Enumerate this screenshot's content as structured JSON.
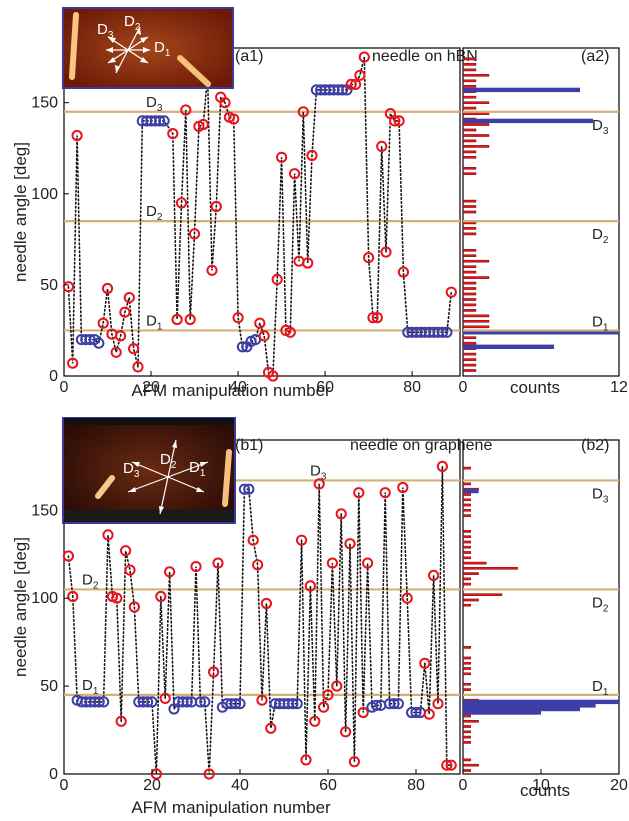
{
  "chart_data": [
    {
      "type": "scatter",
      "panel_label": "(a1)",
      "title": "needle on hBN",
      "xlabel": "AFM manipulation number",
      "ylabel": "needle angle [deg]",
      "xlim": [
        0,
        91
      ],
      "ylim": [
        0,
        180
      ],
      "xticks": [
        0,
        20,
        40,
        60,
        80
      ],
      "yticks": [
        0,
        50,
        100,
        150
      ],
      "reference_lines": [
        {
          "label_main": "D",
          "label_sub": "1",
          "value": 25
        },
        {
          "label_main": "D",
          "label_sub": "2",
          "value": 85
        },
        {
          "label_main": "D",
          "label_sub": "3",
          "value": 145
        }
      ],
      "inset_labels": [
        {
          "main": "D",
          "sub": "3"
        },
        {
          "main": "D",
          "sub": "2"
        },
        {
          "main": "D",
          "sub": "1"
        }
      ],
      "points": [
        [
          1,
          49,
          "red"
        ],
        [
          2,
          7,
          "red"
        ],
        [
          3,
          132,
          "red"
        ],
        [
          4,
          20,
          "blue"
        ],
        [
          5,
          20,
          "blue"
        ],
        [
          6,
          20,
          "blue"
        ],
        [
          7,
          20,
          "blue"
        ],
        [
          8,
          18,
          "blue"
        ],
        [
          9,
          29,
          "red"
        ],
        [
          10,
          48,
          "red"
        ],
        [
          11,
          23,
          "red"
        ],
        [
          12,
          13,
          "red"
        ],
        [
          13,
          22,
          "red"
        ],
        [
          14,
          35,
          "red"
        ],
        [
          15,
          43,
          "red"
        ],
        [
          16,
          15,
          "red"
        ],
        [
          17,
          5,
          "red"
        ],
        [
          18,
          140,
          "blue"
        ],
        [
          19,
          140,
          "blue"
        ],
        [
          20,
          140,
          "blue"
        ],
        [
          21,
          140,
          "blue"
        ],
        [
          22,
          140,
          "blue"
        ],
        [
          23,
          140,
          "blue"
        ],
        [
          25,
          133,
          "red"
        ],
        [
          26,
          31,
          "red"
        ],
        [
          27,
          95,
          "red"
        ],
        [
          28,
          146,
          "red"
        ],
        [
          29,
          31,
          "red"
        ],
        [
          30,
          78,
          "red"
        ],
        [
          31,
          137,
          "red"
        ],
        [
          32,
          138,
          "red"
        ],
        [
          33,
          165,
          "red"
        ],
        [
          34,
          58,
          "red"
        ],
        [
          35,
          93,
          "red"
        ],
        [
          36,
          153,
          "red"
        ],
        [
          37,
          150,
          "red"
        ],
        [
          38,
          142,
          "red"
        ],
        [
          39,
          141,
          "red"
        ],
        [
          40,
          32,
          "red"
        ],
        [
          41,
          16,
          "blue"
        ],
        [
          42,
          16,
          "blue"
        ],
        [
          43,
          19,
          "blue"
        ],
        [
          44,
          20,
          "blue"
        ],
        [
          45,
          29,
          "red"
        ],
        [
          46,
          22,
          "red"
        ],
        [
          47,
          2,
          "red"
        ],
        [
          48,
          0,
          "red"
        ],
        [
          49,
          53,
          "red"
        ],
        [
          50,
          120,
          "red"
        ],
        [
          51,
          25,
          "red"
        ],
        [
          52,
          24,
          "red"
        ],
        [
          53,
          111,
          "red"
        ],
        [
          54,
          63,
          "red"
        ],
        [
          55,
          145,
          "red"
        ],
        [
          56,
          62,
          "red"
        ],
        [
          57,
          121,
          "red"
        ],
        [
          58,
          157,
          "blue"
        ],
        [
          59,
          157,
          "blue"
        ],
        [
          60,
          157,
          "blue"
        ],
        [
          61,
          157,
          "blue"
        ],
        [
          62,
          157,
          "blue"
        ],
        [
          63,
          157,
          "blue"
        ],
        [
          64,
          157,
          "blue"
        ],
        [
          65,
          157,
          "blue"
        ],
        [
          66,
          160,
          "red"
        ],
        [
          67,
          160,
          "red"
        ],
        [
          68,
          165,
          "red"
        ],
        [
          69,
          175,
          "red"
        ],
        [
          70,
          65,
          "red"
        ],
        [
          71,
          32,
          "red"
        ],
        [
          72,
          32,
          "red"
        ],
        [
          73,
          126,
          "red"
        ],
        [
          74,
          68,
          "red"
        ],
        [
          75,
          144,
          "red"
        ],
        [
          76,
          140,
          "red"
        ],
        [
          77,
          140,
          "red"
        ],
        [
          78,
          57,
          "red"
        ],
        [
          79,
          24,
          "blue"
        ],
        [
          80,
          24,
          "blue"
        ],
        [
          81,
          24,
          "blue"
        ],
        [
          82,
          24,
          "blue"
        ],
        [
          83,
          24,
          "blue"
        ],
        [
          84,
          24,
          "blue"
        ],
        [
          85,
          24,
          "blue"
        ],
        [
          86,
          24,
          "blue"
        ],
        [
          87,
          24,
          "blue"
        ],
        [
          88,
          24,
          "blue"
        ],
        [
          89,
          46,
          "red"
        ]
      ]
    },
    {
      "type": "bar",
      "orientation": "horizontal",
      "panel_label": "(a2)",
      "xlabel": "counts",
      "xlim": [
        0,
        12
      ],
      "xticks": [
        0,
        12
      ],
      "reference_lines": [
        {
          "label_main": "D",
          "label_sub": "1",
          "value": 25
        },
        {
          "label_main": "D",
          "label_sub": "2",
          "value": 85
        },
        {
          "label_main": "D",
          "label_sub": "3",
          "value": 145
        }
      ],
      "red_bars": [
        [
          3,
          1
        ],
        [
          6,
          1
        ],
        [
          9,
          1
        ],
        [
          12,
          1
        ],
        [
          15,
          1
        ],
        [
          18,
          1
        ],
        [
          21,
          1
        ],
        [
          24,
          2
        ],
        [
          27,
          2
        ],
        [
          30,
          2
        ],
        [
          33,
          2
        ],
        [
          36,
          1
        ],
        [
          39,
          1
        ],
        [
          42,
          1
        ],
        [
          45,
          1
        ],
        [
          48,
          1
        ],
        [
          51,
          1
        ],
        [
          54,
          2
        ],
        [
          57,
          1
        ],
        [
          60,
          1
        ],
        [
          63,
          2
        ],
        [
          66,
          1
        ],
        [
          69,
          1
        ],
        [
          78,
          1
        ],
        [
          81,
          1
        ],
        [
          84,
          1
        ],
        [
          90,
          1
        ],
        [
          93,
          1
        ],
        [
          96,
          1
        ],
        [
          111,
          1
        ],
        [
          114,
          1
        ],
        [
          120,
          1
        ],
        [
          123,
          1
        ],
        [
          126,
          2
        ],
        [
          129,
          1
        ],
        [
          132,
          2
        ],
        [
          135,
          1
        ],
        [
          138,
          2
        ],
        [
          141,
          1
        ],
        [
          144,
          2
        ],
        [
          147,
          1
        ],
        [
          150,
          2
        ],
        [
          153,
          1
        ],
        [
          156,
          1
        ],
        [
          159,
          1
        ],
        [
          162,
          1
        ],
        [
          165,
          2
        ],
        [
          168,
          1
        ],
        [
          171,
          1
        ],
        [
          174,
          1
        ]
      ],
      "blue_bars": [
        [
          16,
          7
        ],
        [
          24,
          12
        ],
        [
          140,
          10
        ],
        [
          157,
          9
        ]
      ]
    },
    {
      "type": "scatter",
      "panel_label": "(b1)",
      "title": "needle on graphene",
      "xlabel": "AFM manipulation number",
      "ylabel": "needle angle [deg]",
      "xlim": [
        0,
        90
      ],
      "ylim": [
        0,
        190
      ],
      "xticks": [
        0,
        20,
        40,
        60,
        80
      ],
      "yticks": [
        0,
        50,
        100,
        150
      ],
      "reference_lines": [
        {
          "label_main": "D",
          "label_sub": "1",
          "value": 45
        },
        {
          "label_main": "D",
          "label_sub": "2",
          "value": 105
        },
        {
          "label_main": "D",
          "label_sub": "3",
          "value": 167
        }
      ],
      "inset_labels": [
        {
          "main": "D",
          "sub": "3"
        },
        {
          "main": "D",
          "sub": "2"
        },
        {
          "main": "D",
          "sub": "1"
        }
      ],
      "points": [
        [
          1,
          124,
          "red"
        ],
        [
          2,
          101,
          "red"
        ],
        [
          3,
          42,
          "blue"
        ],
        [
          4,
          41,
          "blue"
        ],
        [
          5,
          41,
          "blue"
        ],
        [
          6,
          41,
          "blue"
        ],
        [
          7,
          41,
          "blue"
        ],
        [
          8,
          41,
          "blue"
        ],
        [
          9,
          41,
          "blue"
        ],
        [
          10,
          136,
          "red"
        ],
        [
          11,
          101,
          "red"
        ],
        [
          12,
          100,
          "red"
        ],
        [
          13,
          30,
          "red"
        ],
        [
          14,
          127,
          "red"
        ],
        [
          15,
          116,
          "red"
        ],
        [
          16,
          95,
          "red"
        ],
        [
          17,
          41,
          "blue"
        ],
        [
          18,
          41,
          "blue"
        ],
        [
          19,
          41,
          "blue"
        ],
        [
          20,
          41,
          "blue"
        ],
        [
          21,
          0,
          "red"
        ],
        [
          22,
          101,
          "red"
        ],
        [
          23,
          43,
          "red"
        ],
        [
          24,
          115,
          "red"
        ],
        [
          25,
          37,
          "blue"
        ],
        [
          26,
          41,
          "blue"
        ],
        [
          27,
          41,
          "blue"
        ],
        [
          28,
          41,
          "blue"
        ],
        [
          29,
          41,
          "blue"
        ],
        [
          30,
          118,
          "red"
        ],
        [
          31,
          41,
          "blue"
        ],
        [
          32,
          41,
          "blue"
        ],
        [
          33,
          0,
          "red"
        ],
        [
          34,
          58,
          "red"
        ],
        [
          35,
          120,
          "red"
        ],
        [
          36,
          38,
          "blue"
        ],
        [
          37,
          40,
          "blue"
        ],
        [
          38,
          40,
          "blue"
        ],
        [
          39,
          40,
          "blue"
        ],
        [
          40,
          40,
          "blue"
        ],
        [
          41,
          162,
          "blue"
        ],
        [
          42,
          162,
          "blue"
        ],
        [
          43,
          133,
          "red"
        ],
        [
          44,
          119,
          "red"
        ],
        [
          45,
          42,
          "red"
        ],
        [
          46,
          97,
          "red"
        ],
        [
          47,
          26,
          "red"
        ],
        [
          48,
          40,
          "blue"
        ],
        [
          49,
          40,
          "blue"
        ],
        [
          50,
          40,
          "blue"
        ],
        [
          51,
          40,
          "blue"
        ],
        [
          52,
          40,
          "blue"
        ],
        [
          53,
          40,
          "blue"
        ],
        [
          54,
          133,
          "red"
        ],
        [
          55,
          8,
          "red"
        ],
        [
          56,
          107,
          "red"
        ],
        [
          57,
          30,
          "red"
        ],
        [
          58,
          165,
          "red"
        ],
        [
          59,
          38,
          "red"
        ],
        [
          60,
          45,
          "red"
        ],
        [
          61,
          120,
          "red"
        ],
        [
          62,
          50,
          "red"
        ],
        [
          63,
          148,
          "red"
        ],
        [
          64,
          24,
          "red"
        ],
        [
          65,
          131,
          "red"
        ],
        [
          66,
          7,
          "red"
        ],
        [
          67,
          160,
          "red"
        ],
        [
          68,
          35,
          "red"
        ],
        [
          69,
          120,
          "red"
        ],
        [
          70,
          38,
          "blue"
        ],
        [
          71,
          39,
          "blue"
        ],
        [
          72,
          39,
          "blue"
        ],
        [
          73,
          160,
          "red"
        ],
        [
          74,
          40,
          "blue"
        ],
        [
          75,
          40,
          "blue"
        ],
        [
          76,
          40,
          "blue"
        ],
        [
          77,
          163,
          "red"
        ],
        [
          78,
          100,
          "red"
        ],
        [
          79,
          35,
          "blue"
        ],
        [
          80,
          35,
          "blue"
        ],
        [
          81,
          35,
          "blue"
        ],
        [
          82,
          63,
          "red"
        ],
        [
          83,
          34,
          "red"
        ],
        [
          84,
          113,
          "red"
        ],
        [
          85,
          40,
          "red"
        ],
        [
          86,
          175,
          "red"
        ],
        [
          87,
          5,
          "red"
        ],
        [
          88,
          5,
          "red"
        ]
      ]
    },
    {
      "type": "bar",
      "orientation": "horizontal",
      "panel_label": "(b2)",
      "xlabel": "counts",
      "xlim": [
        0,
        20
      ],
      "xticks": [
        0,
        10,
        20
      ],
      "reference_lines": [
        {
          "label_main": "D",
          "label_sub": "1",
          "value": 45
        },
        {
          "label_main": "D",
          "label_sub": "2",
          "value": 105
        },
        {
          "label_main": "D",
          "label_sub": "3",
          "value": 167
        }
      ],
      "red_bars": [
        [
          2,
          1
        ],
        [
          5,
          2
        ],
        [
          8,
          1
        ],
        [
          18,
          1
        ],
        [
          21,
          1
        ],
        [
          24,
          1
        ],
        [
          27,
          1
        ],
        [
          30,
          2
        ],
        [
          33,
          1
        ],
        [
          36,
          2
        ],
        [
          42,
          2
        ],
        [
          48,
          1
        ],
        [
          51,
          1
        ],
        [
          57,
          1
        ],
        [
          60,
          1
        ],
        [
          63,
          1
        ],
        [
          66,
          1
        ],
        [
          72,
          1
        ],
        [
          96,
          1
        ],
        [
          99,
          2
        ],
        [
          102,
          5
        ],
        [
          108,
          1
        ],
        [
          111,
          1
        ],
        [
          114,
          2
        ],
        [
          117,
          7
        ],
        [
          120,
          3
        ],
        [
          123,
          1
        ],
        [
          126,
          1
        ],
        [
          129,
          1
        ],
        [
          132,
          1
        ],
        [
          135,
          1
        ],
        [
          138,
          1
        ],
        [
          147,
          1
        ],
        [
          150,
          1
        ],
        [
          153,
          1
        ],
        [
          156,
          1
        ],
        [
          159,
          1
        ],
        [
          162,
          2
        ],
        [
          165,
          1
        ],
        [
          174,
          1
        ]
      ],
      "blue_bars": [
        [
          35,
          10
        ],
        [
          37,
          15
        ],
        [
          39,
          17
        ],
        [
          41,
          20
        ],
        [
          161,
          2
        ]
      ]
    }
  ]
}
